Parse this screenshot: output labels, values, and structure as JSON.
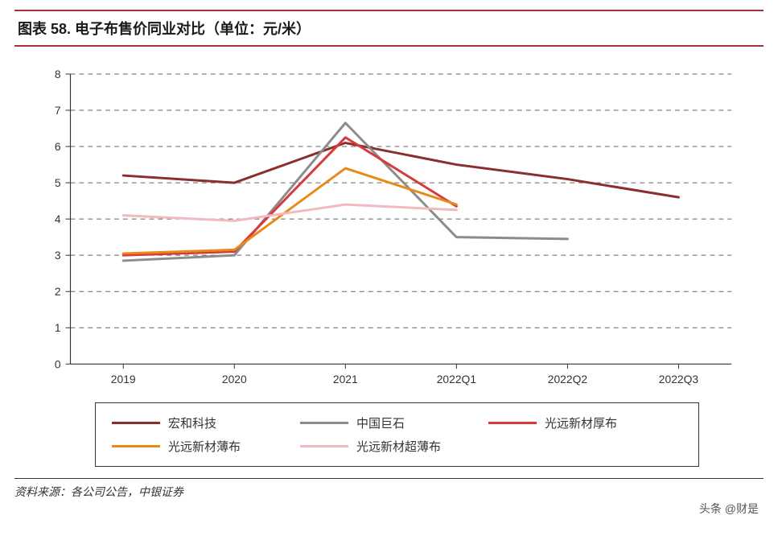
{
  "title": "图表 58. 电子布售价同业对比（单位：元/米）",
  "source": "资料来源：各公司公告，中银证券",
  "watermark": "头条 @财是",
  "chart": {
    "type": "line",
    "background_color": "#ffffff",
    "grid_color": "#666666",
    "grid_dash": "6,5",
    "axis_color": "#333333",
    "ylim": [
      0,
      8
    ],
    "ytick_step": 1,
    "yticks": [
      0,
      1,
      2,
      3,
      4,
      5,
      6,
      7,
      8
    ],
    "categories": [
      "2019",
      "2020",
      "2021",
      "2022Q1",
      "2022Q2",
      "2022Q3"
    ],
    "label_fontsize": 14,
    "line_width": 3,
    "series": [
      {
        "name": "宏和科技",
        "color": "#8b2e2e",
        "values": [
          5.2,
          5.0,
          6.1,
          5.5,
          5.1,
          4.6
        ]
      },
      {
        "name": "中国巨石",
        "color": "#8c8c8c",
        "values": [
          2.85,
          3.0,
          6.65,
          3.5,
          3.45,
          null
        ]
      },
      {
        "name": "光远新材厚布",
        "color": "#d63a3a",
        "values": [
          3.0,
          3.1,
          6.25,
          4.35,
          null,
          null
        ]
      },
      {
        "name": "光远新材薄布",
        "color": "#e8891a",
        "values": [
          3.05,
          3.15,
          5.4,
          4.4,
          null,
          null
        ]
      },
      {
        "name": "光远新材超薄布",
        "color": "#f2b9c0",
        "values": [
          4.1,
          3.95,
          4.4,
          4.25,
          null,
          null
        ]
      }
    ]
  },
  "legend": {
    "border_color": "#333333",
    "items": [
      {
        "label": "宏和科技",
        "color": "#8b2e2e"
      },
      {
        "label": "中国巨石",
        "color": "#8c8c8c"
      },
      {
        "label": "光远新材厚布",
        "color": "#d63a3a"
      },
      {
        "label": "光远新材薄布",
        "color": "#e8891a"
      },
      {
        "label": "光远新材超薄布",
        "color": "#f2b9c0"
      }
    ]
  }
}
